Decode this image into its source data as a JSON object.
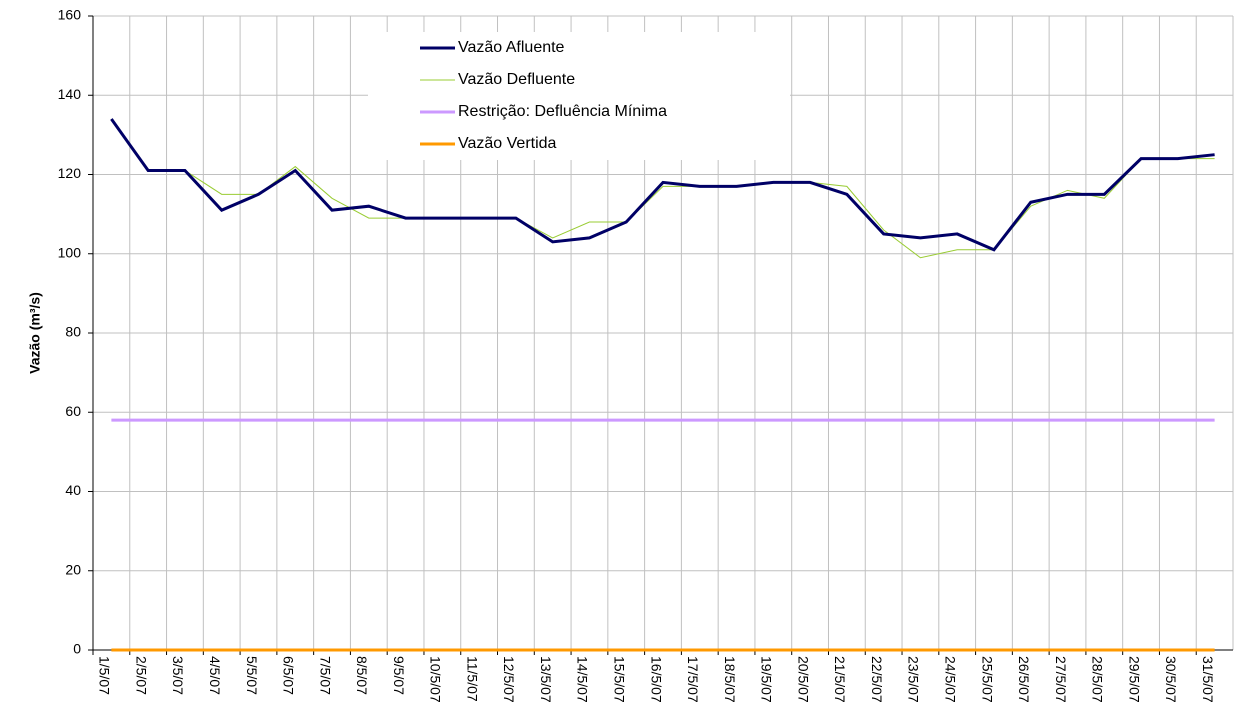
{
  "chart_data": {
    "type": "line",
    "y_label": "Vazão (m³/s)",
    "categories": [
      "1/5/07",
      "2/5/07",
      "3/5/07",
      "4/5/07",
      "5/5/07",
      "6/5/07",
      "7/5/07",
      "8/5/07",
      "9/5/07",
      "10/5/07",
      "11/5/07",
      "12/5/07",
      "13/5/07",
      "14/5/07",
      "15/5/07",
      "16/5/07",
      "17/5/07",
      "18/5/07",
      "19/5/07",
      "20/5/07",
      "21/5/07",
      "22/5/07",
      "23/5/07",
      "24/5/07",
      "25/5/07",
      "26/5/07",
      "27/5/07",
      "28/5/07",
      "29/5/07",
      "30/5/07",
      "31/5/07"
    ],
    "series": [
      {
        "name": "Vazão Afluente",
        "color": "#000066",
        "width": 3,
        "values": [
          134,
          121,
          121,
          111,
          115,
          121,
          111,
          112,
          109,
          109,
          109,
          109,
          103,
          104,
          108,
          118,
          117,
          117,
          118,
          118,
          115,
          105,
          104,
          105,
          101,
          113,
          115,
          115,
          124,
          124,
          125
        ]
      },
      {
        "name": "Vazão Defluente",
        "color": "#99cc33",
        "width": 1,
        "values": [
          134,
          121,
          121,
          115,
          115,
          122,
          114,
          109,
          109,
          109,
          109,
          109,
          104,
          108,
          108,
          117,
          117,
          117,
          118,
          118,
          117,
          106,
          99,
          101,
          101,
          112,
          116,
          114,
          124,
          124,
          124
        ]
      },
      {
        "name": "Restrição: Defluência Mínima",
        "color": "#cc99ff",
        "width": 3,
        "values": [
          58,
          58,
          58,
          58,
          58,
          58,
          58,
          58,
          58,
          58,
          58,
          58,
          58,
          58,
          58,
          58,
          58,
          58,
          58,
          58,
          58,
          58,
          58,
          58,
          58,
          58,
          58,
          58,
          58,
          58,
          58
        ]
      },
      {
        "name": "Vazão Vertida",
        "color": "#ff9900",
        "width": 3,
        "values": [
          0,
          0,
          0,
          0,
          0,
          0,
          0,
          0,
          0,
          0,
          0,
          0,
          0,
          0,
          0,
          0,
          0,
          0,
          0,
          0,
          0,
          0,
          0,
          0,
          0,
          0,
          0,
          0,
          0,
          0,
          0
        ]
      }
    ],
    "ylim": [
      0,
      160
    ],
    "yticks": [
      0,
      20,
      40,
      60,
      80,
      100,
      120,
      140,
      160
    ],
    "grid": true
  }
}
